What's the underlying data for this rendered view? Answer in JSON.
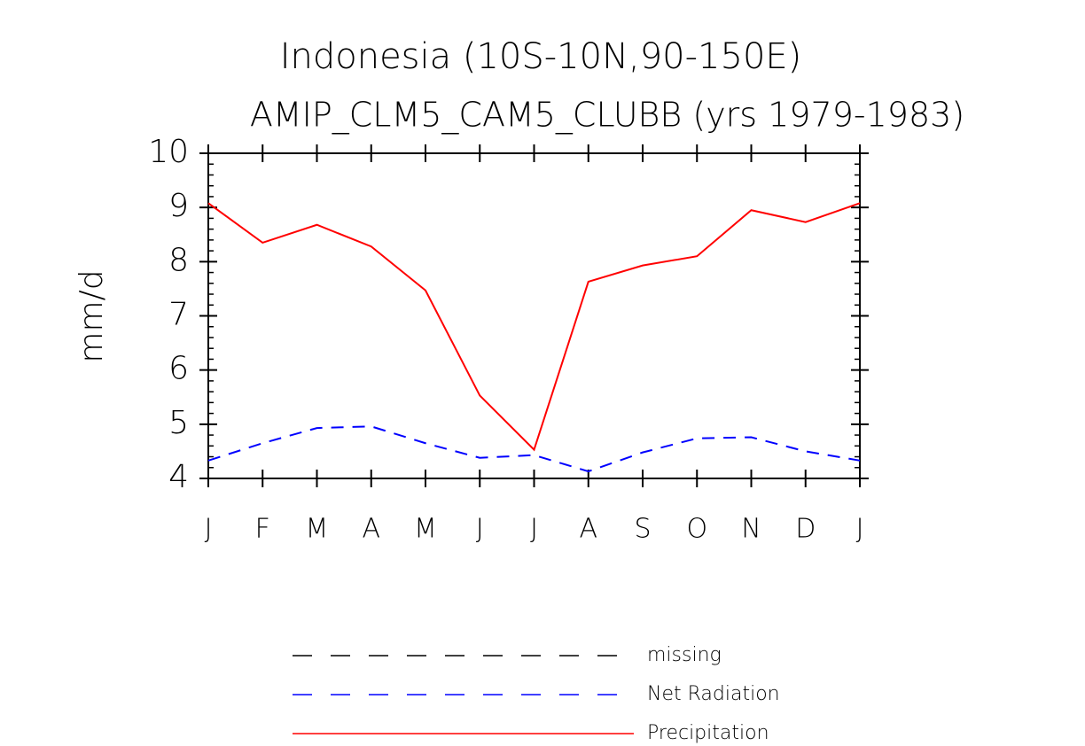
{
  "chart_data": {
    "type": "line",
    "title": "Indonesia (10S-10N,90-150E)",
    "subtitle": "AMIP_CLM5_CAM5_CLUBB (yrs 1979-1983)",
    "y_label": "mm/d",
    "categories": [
      "J",
      "F",
      "M",
      "A",
      "M",
      "J",
      "J",
      "A",
      "S",
      "O",
      "N",
      "D",
      "J"
    ],
    "series": [
      {
        "name": "missing",
        "color": "#000000",
        "dash": true,
        "values": [
          null,
          null,
          null,
          null,
          null,
          null,
          null,
          null,
          null,
          null,
          null,
          null,
          null
        ]
      },
      {
        "name": "Net Radiation",
        "color": "#0000ff",
        "dash": true,
        "values": [
          4.33,
          4.65,
          4.93,
          4.96,
          4.65,
          4.38,
          4.43,
          4.13,
          4.48,
          4.74,
          4.76,
          4.5,
          4.33
        ]
      },
      {
        "name": "Precipitation",
        "color": "#ff0000",
        "dash": false,
        "values": [
          9.08,
          8.35,
          8.68,
          8.28,
          7.47,
          5.53,
          4.53,
          7.63,
          7.93,
          8.1,
          8.95,
          8.73,
          9.08
        ]
      }
    ],
    "ylim": [
      4,
      10
    ],
    "yticks": [
      4,
      5,
      6,
      7,
      8,
      9,
      10
    ]
  }
}
